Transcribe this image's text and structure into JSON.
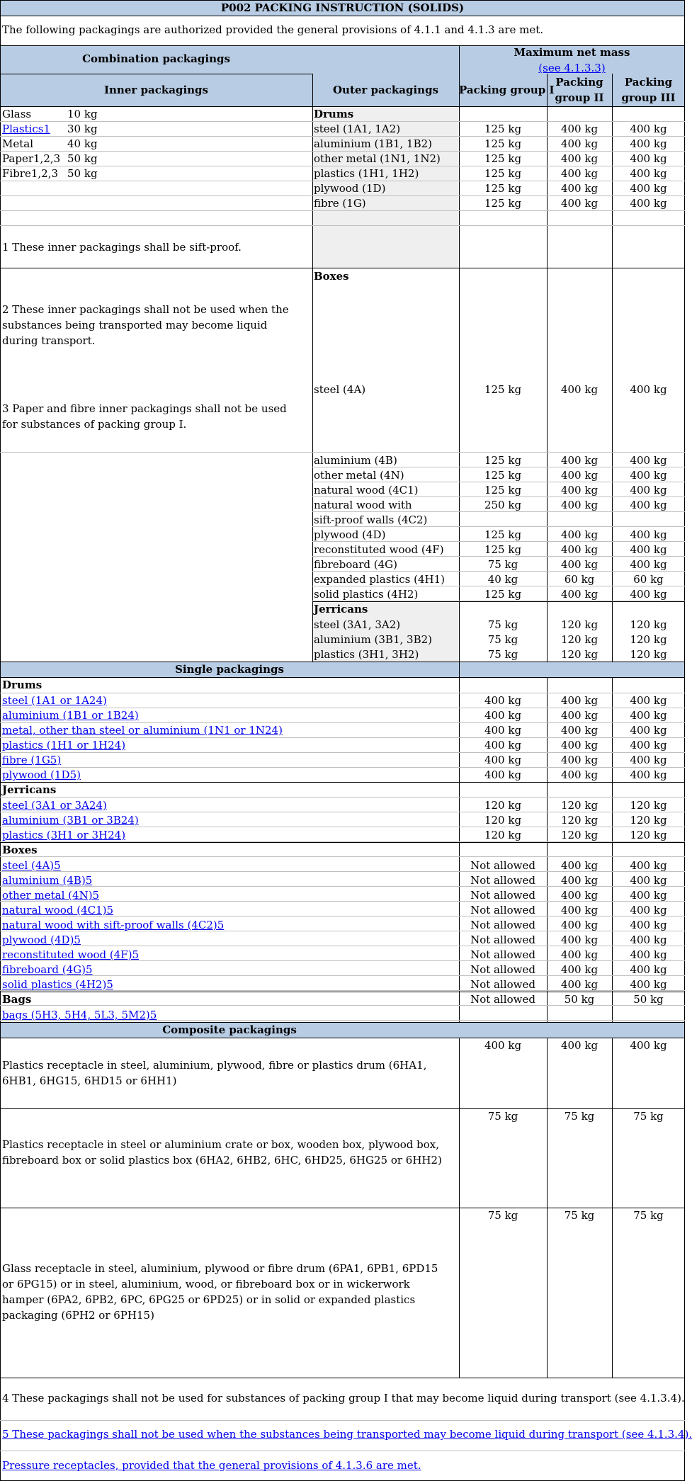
{
  "title": "P002 PACKING INSTRUCTION (SOLIDS)",
  "intro": "The following packagings are authorized provided the general provisions of 4.1.1 and 4.1.3 are met.",
  "headers": {
    "combination": "Combination packagings",
    "max_net_mass": "Maximum net mass",
    "see_ref": "(see 4.1.3.3)",
    "inner": "Inner packagings",
    "outer": "Outer packagings",
    "pg1": "Packing group I",
    "pg2_a": "Packing",
    "pg2_b": "group II",
    "pg3_a": "Packing",
    "pg3_b": "group III"
  },
  "inner": [
    {
      "name": "Glass",
      "mass": "10 kg",
      "link": false
    },
    {
      "name": "Plastics1",
      "mass": "30 kg",
      "link": true
    },
    {
      "name": "Metal",
      "mass": "40 kg",
      "link": false
    },
    {
      "name": "Paper1,2,3",
      "mass": "50 kg",
      "link": false
    },
    {
      "name": "Fibre1,2,3",
      "mass": "50 kg",
      "link": false
    }
  ],
  "notes": {
    "n1": "1 These inner packagings shall be sift-proof.",
    "n2": "2 These inner packagings shall not be used when the substances being transported may become liquid during transport.",
    "n3": "3 Paper and fibre inner packagings shall not be used for substances of packing group I.",
    "n4": "4 These packagings shall not be used for substances of packing group I that may become liquid during transport (see 4.1.3.4).",
    "n5": "5 These packagings shall not be used when the substances being transported may become liquid during transport (see 4.1.3.4).",
    "pressure": "Pressure receptacles, provided that the general provisions of 4.1.3.6 are met."
  },
  "outer_drums": {
    "heading": "Drums",
    "rows": [
      [
        "steel (1A1, 1A2)",
        "125 kg",
        "400 kg",
        "400 kg"
      ],
      [
        "aluminium (1B1, 1B2)",
        "125 kg",
        "400 kg",
        "400 kg"
      ],
      [
        "other metal (1N1, 1N2)",
        "125 kg",
        "400 kg",
        "400 kg"
      ],
      [
        "plastics (1H1, 1H2)",
        "125 kg",
        "400 kg",
        "400 kg"
      ],
      [
        "plywood (1D)",
        "125 kg",
        "400 kg",
        "400 kg"
      ],
      [
        "fibre (1G)",
        "125 kg",
        "400 kg",
        "400 kg"
      ]
    ]
  },
  "outer_boxes": {
    "heading": "Boxes",
    "steel": [
      "steel (4A)",
      "125 kg",
      "400 kg",
      "400 kg"
    ],
    "rows": [
      [
        "aluminium (4B)",
        "125 kg",
        "400 kg",
        "400 kg"
      ],
      [
        "other metal (4N)",
        "125 kg",
        "400 kg",
        "400 kg"
      ],
      [
        "natural wood (4C1)",
        "125 kg",
        "400 kg",
        "400 kg"
      ],
      [
        "natural wood with",
        "250 kg",
        "400 kg",
        "400 kg"
      ],
      [
        "sift-proof walls (4C2)",
        "",
        "",
        ""
      ],
      [
        "plywood (4D)",
        "125 kg",
        "400 kg",
        "400 kg"
      ],
      [
        "reconstituted wood (4F)",
        "125 kg",
        "400 kg",
        "400 kg"
      ],
      [
        "fibreboard (4G)",
        "75 kg",
        "400 kg",
        "400 kg"
      ],
      [
        "expanded plastics (4H1)",
        "40 kg",
        "60 kg",
        "60 kg"
      ],
      [
        "solid plastics (4H2)",
        "125 kg",
        "400 kg",
        "400 kg"
      ]
    ]
  },
  "outer_jerricans": {
    "heading": "Jerricans",
    "rows": [
      [
        "steel (3A1, 3A2)",
        "75 kg",
        "120 kg",
        "120 kg"
      ],
      [
        "aluminium (3B1, 3B2)",
        "75 kg",
        "120 kg",
        "120 kg"
      ],
      [
        "plastics (3H1, 3H2)",
        "75 kg",
        "120 kg",
        "120 kg"
      ]
    ]
  },
  "single": {
    "heading": "Single packagings",
    "drums_heading": "Drums",
    "drums": [
      [
        "steel (1A1 or 1A24)",
        "400 kg",
        "400 kg",
        "400 kg"
      ],
      [
        "aluminium (1B1 or 1B24)",
        "400 kg",
        "400 kg",
        "400 kg"
      ],
      [
        "metal, other than steel or aluminium (1N1 or 1N24)",
        "400 kg",
        "400 kg",
        "400 kg"
      ],
      [
        "plastics (1H1 or 1H24)",
        "400 kg",
        "400 kg",
        "400 kg"
      ],
      [
        "fibre (1G5)",
        "400 kg",
        "400 kg",
        "400 kg"
      ],
      [
        "plywood (1D5)",
        "400 kg",
        "400 kg",
        "400 kg"
      ]
    ],
    "jerricans_heading": "Jerricans",
    "jerricans": [
      [
        "steel (3A1 or 3A24)",
        "120 kg",
        "120 kg",
        "120 kg"
      ],
      [
        "aluminium (3B1 or 3B24)",
        "120 kg",
        "120 kg",
        "120 kg"
      ],
      [
        "plastics (3H1 or 3H24)",
        "120 kg",
        "120 kg",
        "120 kg"
      ]
    ],
    "boxes_heading": "Boxes",
    "boxes": [
      [
        "steel (4A)5",
        "Not allowed",
        "400 kg",
        "400 kg"
      ],
      [
        "aluminium (4B)5",
        "Not allowed",
        "400 kg",
        "400 kg"
      ],
      [
        "other metal (4N)5",
        "Not allowed",
        "400 kg",
        "400 kg"
      ],
      [
        "natural wood (4C1)5",
        "Not allowed",
        "400 kg",
        "400 kg"
      ],
      [
        "natural wood with sift-proof walls (4C2)5",
        "Not allowed",
        "400 kg",
        "400 kg"
      ],
      [
        "plywood (4D)5",
        "Not allowed",
        "400 kg",
        "400 kg"
      ],
      [
        "reconstituted wood (4F)5",
        "Not allowed",
        "400 kg",
        "400 kg"
      ],
      [
        "fibreboard (4G)5",
        "Not allowed",
        "400 kg",
        "400 kg"
      ],
      [
        "solid plastics (4H2)5",
        "Not allowed",
        "400 kg",
        "400 kg"
      ]
    ],
    "bags_heading": "Bags",
    "bags": [
      "bags (5H3, 5H4, 5L3, 5M2)5",
      "Not allowed",
      "50 kg",
      "50 kg"
    ]
  },
  "composite": {
    "heading": "Composite packagings",
    "rows": [
      {
        "desc": "Plastics receptacle in steel, aluminium, plywood, fibre or plastics drum (6HA1, 6HB1, 6HG15, 6HD15 or 6HH1)",
        "pg1": "400 kg",
        "pg2": "400 kg",
        "pg3": "400 kg"
      },
      {
        "desc": "Plastics receptacle in steel or aluminium crate or box, wooden box, plywood box, fibreboard box or solid plastics box (6HA2, 6HB2, 6HC, 6HD25, 6HG25 or 6HH2)",
        "pg1": "75 kg",
        "pg2": "75 kg",
        "pg3": "75 kg"
      },
      {
        "desc": "Glass receptacle in steel, aluminium, plywood or fibre drum (6PA1, 6PB1, 6PD15 or 6PG15) or in steel, aluminium, wood, or fibreboard box or in wickerwork hamper (6PA2, 6PB2, 6PC, 6PG25 or 6PD25) or in solid or expanded plastics packaging (6PH2 or 6PH15)",
        "pg1": "75 kg",
        "pg2": "75 kg",
        "pg3": "75 kg"
      }
    ]
  }
}
